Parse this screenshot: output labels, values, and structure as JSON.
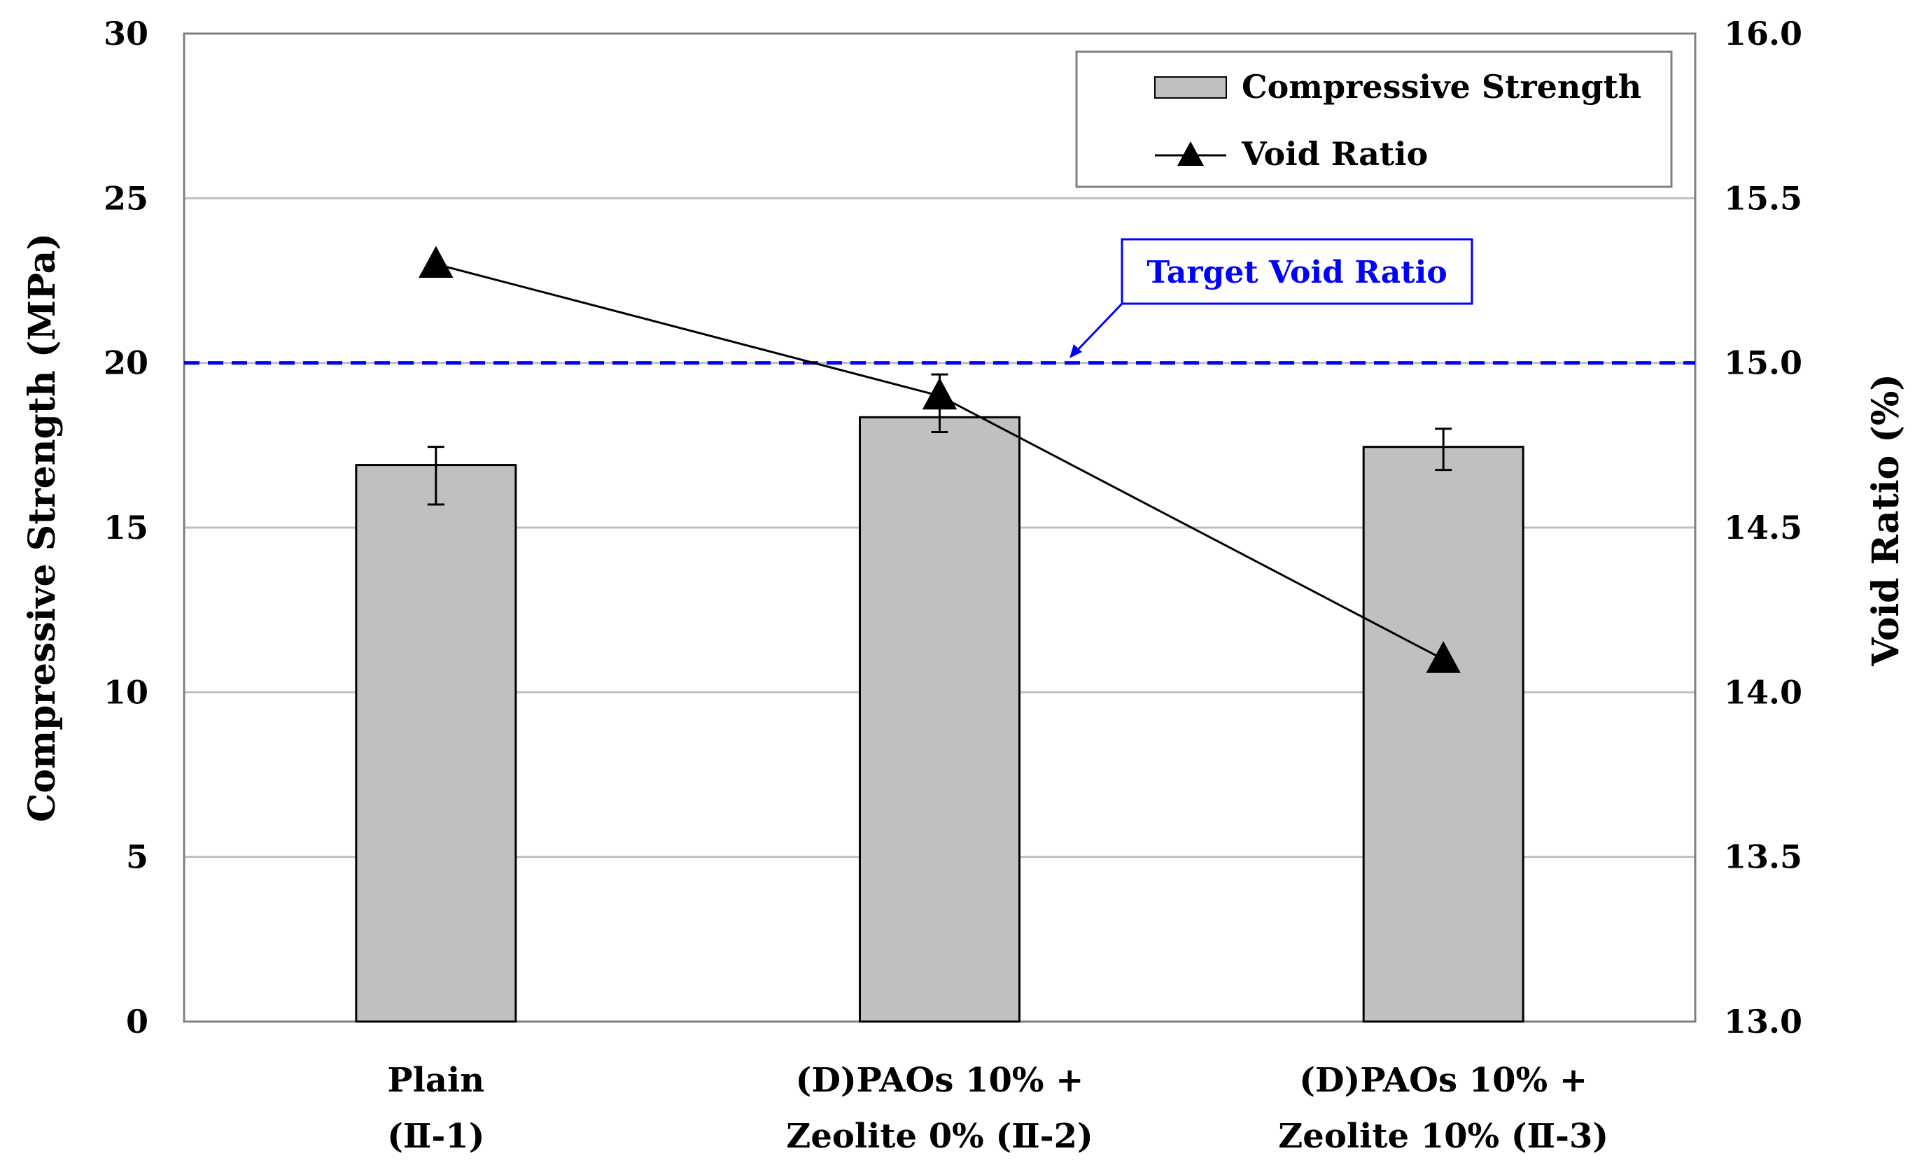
{
  "chart_data": {
    "type": "bar",
    "categories": [
      [
        "Plain",
        "(Ⅱ-1)"
      ],
      [
        "(D)PAOs 10% +",
        "Zeolite 0% (Ⅱ-2)"
      ],
      [
        "(D)PAOs 10% +",
        "Zeolite 10% (Ⅱ-3)"
      ]
    ],
    "series": [
      {
        "name": "Compressive Strength",
        "type": "bar",
        "axis": "left",
        "values": [
          16.9,
          18.35,
          17.45
        ],
        "error_low": [
          15.7,
          17.9,
          16.75
        ],
        "error_high": [
          17.45,
          19.65,
          18.0
        ],
        "color": "#c0c0c0"
      },
      {
        "name": "Void Ratio",
        "type": "line",
        "axis": "right",
        "marker": "triangle",
        "values": [
          15.3,
          14.9,
          14.1
        ],
        "color": "#000000"
      }
    ],
    "reference_line": {
      "label": "Target Void Ratio",
      "axis": "right",
      "value": 15.0,
      "color": "#0000ff"
    },
    "ylabel": "Compressive Strength (MPa)",
    "y2label": "Void Ratio (%)",
    "ylim": [
      0,
      30
    ],
    "y2lim": [
      13.0,
      16.0
    ],
    "yticks": [
      "0",
      "5",
      "10",
      "15",
      "20",
      "25",
      "30"
    ],
    "y2ticks": [
      "13.0",
      "13.5",
      "14.0",
      "14.5",
      "15.0",
      "15.5",
      "16.0"
    ],
    "grid": true,
    "legend_position": "top-right"
  }
}
